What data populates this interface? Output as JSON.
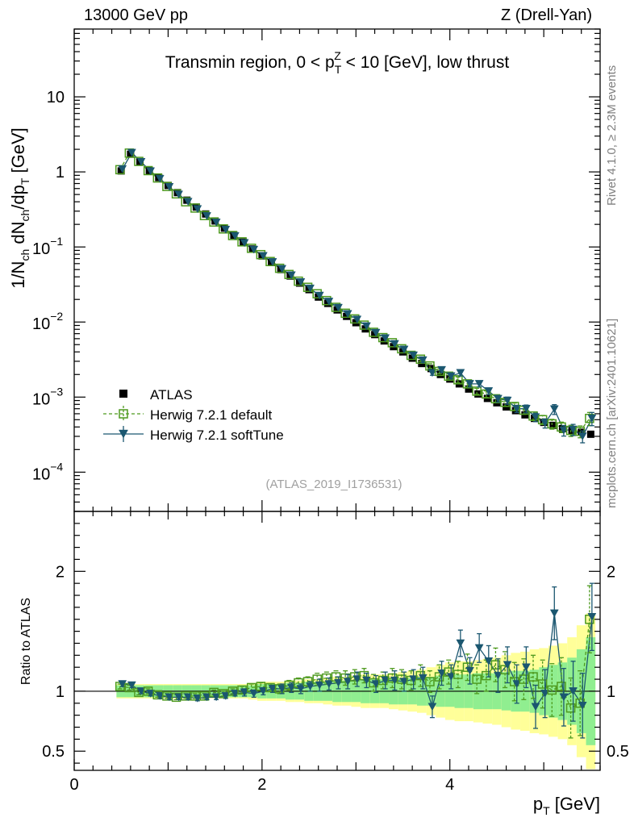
{
  "header": {
    "left": "13000 GeV pp",
    "right": "Z (Drell-Yan)"
  },
  "side_labels": {
    "rivet": "Rivet 4.1.0, ≥ 2.3M events",
    "mcplots": "mcplots.cern.ch [arXiv:2401.10621]"
  },
  "colors": {
    "atlas": "#000000",
    "herwig_default": "#4e9a1f",
    "herwig_softtune": "#1b5770",
    "band_yellow": "#ffff99",
    "band_green": "#90ee90"
  },
  "chart_data": [
    {
      "type": "scatter",
      "panel": "main",
      "title_parts": [
        "Transmin region, 0 < p",
        "T",
        "Z",
        " < 10 [GeV], low thrust"
      ],
      "ylabel_parts": [
        "1/N",
        "ch",
        " dN",
        "ch",
        "/dp",
        "T",
        " [GeV]"
      ],
      "analysis_tag": "(ATLAS_2019_I1736531)",
      "yscale": "log",
      "ylim": [
        3e-05,
        80
      ],
      "xlim": [
        0,
        5.6
      ],
      "ytick_labels": [
        "10",
        "1",
        "10",
        "−1",
        "10",
        "−2",
        "10",
        "−3",
        "10",
        "−4"
      ],
      "ytick_values": [
        10,
        1,
        0.1,
        0.01,
        0.001,
        0.0001
      ],
      "x": [
        0.5,
        0.6,
        0.7,
        0.8,
        0.9,
        1.0,
        1.1,
        1.2,
        1.3,
        1.4,
        1.5,
        1.6,
        1.7,
        1.8,
        1.9,
        2.0,
        2.1,
        2.2,
        2.3,
        2.4,
        2.5,
        2.6,
        2.7,
        2.8,
        2.9,
        3.0,
        3.1,
        3.2,
        3.3,
        3.4,
        3.5,
        3.6,
        3.7,
        3.8,
        3.9,
        4.0,
        4.1,
        4.2,
        4.3,
        4.4,
        4.5,
        4.6,
        4.7,
        4.8,
        4.9,
        5.0,
        5.1,
        5.2,
        5.3,
        5.4,
        5.5
      ],
      "series": [
        {
          "name": "ATLAS",
          "values": [
            1.03,
            1.72,
            1.36,
            1.04,
            0.84,
            0.66,
            0.53,
            0.42,
            0.34,
            0.275,
            0.222,
            0.178,
            0.143,
            0.116,
            0.094,
            0.076,
            0.062,
            0.05,
            0.041,
            0.033,
            0.027,
            0.0215,
            0.0177,
            0.0145,
            0.0119,
            0.0098,
            0.0081,
            0.0068,
            0.0056,
            0.0047,
            0.004,
            0.0033,
            0.0028,
            0.0024,
            0.002,
            0.00174,
            0.0015,
            0.00128,
            0.0011,
            0.00096,
            0.00084,
            0.00074,
            0.00066,
            0.00058,
            0.00052,
            0.00046,
            0.00042,
            0.00038,
            0.00036,
            0.00034,
            0.00032
          ],
          "rel_err": [
            0.06,
            0.06,
            0.05,
            0.05,
            0.05,
            0.05,
            0.05,
            0.05,
            0.05,
            0.05,
            0.05,
            0.05,
            0.06,
            0.06,
            0.06,
            0.06,
            0.07,
            0.07,
            0.07,
            0.08,
            0.08,
            0.08,
            0.08,
            0.09,
            0.09,
            0.1,
            0.1,
            0.1,
            0.1,
            0.11,
            0.11,
            0.11,
            0.12,
            0.12,
            0.12,
            0.13,
            0.13,
            0.14,
            0.14,
            0.15,
            0.15,
            0.15,
            0.16,
            0.16,
            0.17,
            0.17,
            0.18,
            0.19,
            0.2,
            0.2,
            0.2
          ]
        },
        {
          "name": "Herwig 7.2.1 default",
          "values": [
            1.07,
            1.78,
            1.38,
            1.04,
            0.83,
            0.64,
            0.51,
            0.4,
            0.33,
            0.262,
            0.215,
            0.174,
            0.142,
            0.117,
            0.096,
            0.079,
            0.064,
            0.052,
            0.043,
            0.035,
            0.029,
            0.0238,
            0.0193,
            0.0157,
            0.0131,
            0.011,
            0.0091,
            0.0073,
            0.0062,
            0.0053,
            0.0044,
            0.0036,
            0.0032,
            0.0026,
            0.0022,
            0.0019,
            0.0017,
            0.0015,
            0.0012,
            0.0011,
            0.00095,
            0.00085,
            0.00075,
            0.00067,
            0.00056,
            0.0005,
            0.00044,
            0.0004,
            0.00036,
            0.00035,
            0.00052
          ],
          "rel_err": [
            0.02,
            0.02,
            0.02,
            0.02,
            0.02,
            0.02,
            0.02,
            0.02,
            0.02,
            0.02,
            0.02,
            0.02,
            0.02,
            0.03,
            0.03,
            0.03,
            0.03,
            0.03,
            0.03,
            0.03,
            0.04,
            0.04,
            0.04,
            0.04,
            0.04,
            0.05,
            0.05,
            0.05,
            0.05,
            0.05,
            0.06,
            0.06,
            0.07,
            0.07,
            0.07,
            0.08,
            0.09,
            0.09,
            0.09,
            0.1,
            0.1,
            0.11,
            0.11,
            0.12,
            0.13,
            0.14,
            0.15,
            0.16,
            0.17,
            0.18,
            0.2
          ]
        },
        {
          "name": "Herwig 7.2.1 softTune",
          "values": [
            1.09,
            1.8,
            1.36,
            1.02,
            0.81,
            0.63,
            0.5,
            0.4,
            0.32,
            0.258,
            0.212,
            0.17,
            0.14,
            0.113,
            0.092,
            0.076,
            0.063,
            0.051,
            0.042,
            0.034,
            0.028,
            0.0225,
            0.0187,
            0.0155,
            0.0128,
            0.0108,
            0.0088,
            0.0072,
            0.0061,
            0.0051,
            0.0043,
            0.0036,
            0.0031,
            0.0021,
            0.0023,
            0.0019,
            0.0021,
            0.0015,
            0.0015,
            0.0012,
            0.00095,
            0.0009,
            0.0007,
            0.0007,
            0.00054,
            0.00045,
            0.00069,
            0.00036,
            0.00037,
            0.0003,
            0.00052
          ],
          "rel_err": [
            0.02,
            0.02,
            0.02,
            0.02,
            0.02,
            0.02,
            0.02,
            0.02,
            0.02,
            0.02,
            0.02,
            0.02,
            0.02,
            0.03,
            0.03,
            0.03,
            0.03,
            0.03,
            0.03,
            0.03,
            0.04,
            0.04,
            0.04,
            0.04,
            0.04,
            0.05,
            0.05,
            0.05,
            0.05,
            0.05,
            0.06,
            0.06,
            0.07,
            0.07,
            0.07,
            0.08,
            0.09,
            0.09,
            0.09,
            0.1,
            0.1,
            0.11,
            0.11,
            0.12,
            0.13,
            0.14,
            0.15,
            0.16,
            0.17,
            0.18,
            0.2
          ]
        }
      ],
      "legend_position": "lower-left"
    },
    {
      "type": "scatter",
      "panel": "ratio",
      "ylabel": "Ratio to ATLAS",
      "xlabel_parts": [
        "p",
        "T",
        " [GeV]"
      ],
      "yscale": "linear",
      "ylim": [
        0.34,
        2.5
      ],
      "xlim": [
        0,
        5.6
      ],
      "ytick_labels": [
        "2",
        "1",
        "0.5"
      ],
      "ytick_values": [
        2,
        1,
        0.5
      ],
      "xtick_labels": [
        "0",
        "2",
        "4"
      ],
      "xtick_values": [
        0,
        2,
        4
      ],
      "band_green_halfwidth": [
        0.05,
        0.05,
        0.05,
        0.05,
        0.05,
        0.05,
        0.05,
        0.05,
        0.05,
        0.05,
        0.05,
        0.05,
        0.05,
        0.05,
        0.05,
        0.06,
        0.06,
        0.06,
        0.07,
        0.07,
        0.08,
        0.08,
        0.08,
        0.09,
        0.09,
        0.09,
        0.1,
        0.1,
        0.1,
        0.11,
        0.11,
        0.11,
        0.12,
        0.12,
        0.13,
        0.13,
        0.14,
        0.14,
        0.15,
        0.15,
        0.15,
        0.16,
        0.17,
        0.17,
        0.18,
        0.2,
        0.22,
        0.24,
        0.28,
        0.35,
        0.45
      ],
      "band_yellow_halfwidth": [
        0.06,
        0.06,
        0.06,
        0.06,
        0.06,
        0.06,
        0.06,
        0.06,
        0.06,
        0.06,
        0.06,
        0.06,
        0.06,
        0.06,
        0.07,
        0.08,
        0.08,
        0.08,
        0.09,
        0.09,
        0.1,
        0.1,
        0.11,
        0.12,
        0.12,
        0.13,
        0.14,
        0.14,
        0.14,
        0.15,
        0.16,
        0.17,
        0.18,
        0.2,
        0.22,
        0.24,
        0.25,
        0.25,
        0.26,
        0.27,
        0.28,
        0.3,
        0.32,
        0.33,
        0.35,
        0.36,
        0.38,
        0.4,
        0.45,
        0.55,
        0.65
      ],
      "series": [
        {
          "name": "Herwig 7.2.1 default",
          "values": [
            1.04,
            1.03,
            0.99,
            1.0,
            0.97,
            0.96,
            0.95,
            0.96,
            0.96,
            0.96,
            0.99,
            0.98,
            1.0,
            1.01,
            1.03,
            1.04,
            1.03,
            1.02,
            1.05,
            1.07,
            1.08,
            1.1,
            1.11,
            1.12,
            1.11,
            1.12,
            1.13,
            1.07,
            1.09,
            1.11,
            1.1,
            1.09,
            1.13,
            1.08,
            1.12,
            1.16,
            1.14,
            1.2,
            1.1,
            1.13,
            1.22,
            1.18,
            1.08,
            1.1,
            1.12,
            1.06,
            1.01,
            1.04,
            0.86,
            0.9,
            1.6
          ],
          "err": [
            0.02,
            0.02,
            0.02,
            0.02,
            0.02,
            0.02,
            0.02,
            0.02,
            0.02,
            0.02,
            0.02,
            0.02,
            0.02,
            0.03,
            0.03,
            0.03,
            0.03,
            0.04,
            0.04,
            0.04,
            0.04,
            0.05,
            0.05,
            0.05,
            0.06,
            0.06,
            0.06,
            0.07,
            0.07,
            0.08,
            0.08,
            0.08,
            0.09,
            0.09,
            0.1,
            0.1,
            0.11,
            0.11,
            0.12,
            0.13,
            0.14,
            0.15,
            0.16,
            0.17,
            0.18,
            0.2,
            0.22,
            0.24,
            0.25,
            0.27,
            0.28
          ]
        },
        {
          "name": "Herwig 7.2.1 softTune",
          "values": [
            1.06,
            1.05,
            1.0,
            0.98,
            0.96,
            0.95,
            0.95,
            0.95,
            0.94,
            0.95,
            0.95,
            0.96,
            0.98,
            0.99,
            0.98,
            1.0,
            1.02,
            1.02,
            1.03,
            1.02,
            1.04,
            1.05,
            1.06,
            1.07,
            1.08,
            1.1,
            1.09,
            1.06,
            1.09,
            1.09,
            1.08,
            1.1,
            1.11,
            0.87,
            1.15,
            1.12,
            1.4,
            1.17,
            1.36,
            1.25,
            1.13,
            1.22,
            1.06,
            1.2,
            0.87,
            0.98,
            1.65,
            0.95,
            1.0,
            0.88,
            1.62
          ],
          "err": [
            0.02,
            0.02,
            0.02,
            0.02,
            0.02,
            0.02,
            0.02,
            0.02,
            0.02,
            0.02,
            0.02,
            0.02,
            0.02,
            0.03,
            0.03,
            0.03,
            0.03,
            0.04,
            0.04,
            0.04,
            0.04,
            0.05,
            0.05,
            0.05,
            0.06,
            0.06,
            0.06,
            0.07,
            0.07,
            0.08,
            0.08,
            0.08,
            0.09,
            0.09,
            0.1,
            0.1,
            0.11,
            0.11,
            0.12,
            0.13,
            0.14,
            0.15,
            0.16,
            0.17,
            0.18,
            0.2,
            0.22,
            0.24,
            0.25,
            0.27,
            0.28
          ]
        }
      ]
    }
  ]
}
